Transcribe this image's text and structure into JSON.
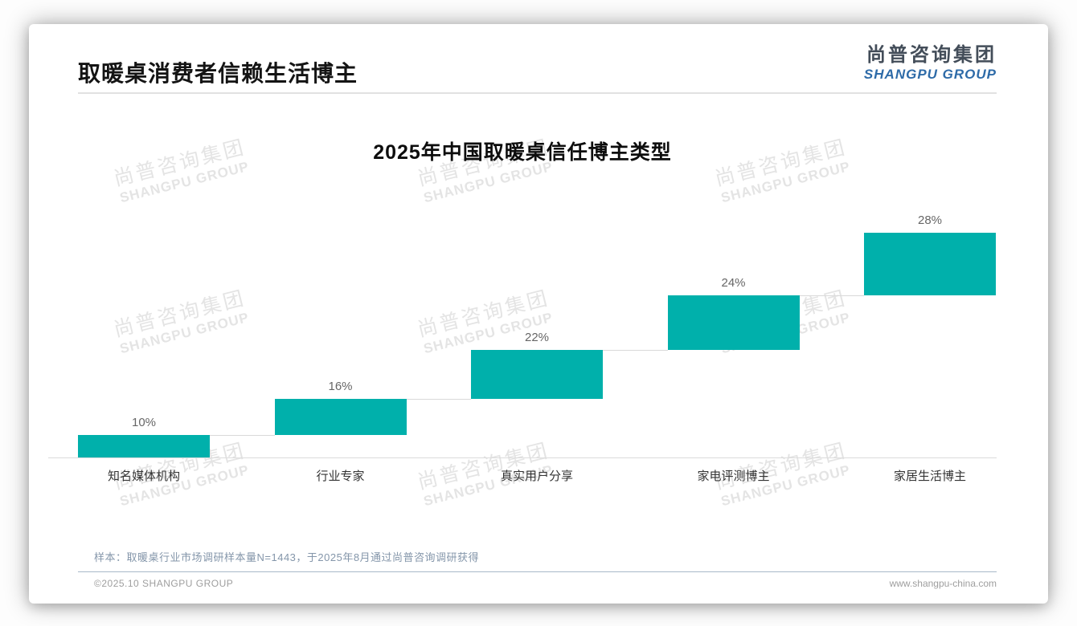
{
  "page": {
    "header": {
      "title": "取暖桌消费者信赖生活博主"
    },
    "logo": {
      "cn": "尚普咨询集团",
      "en": "SHANGPU GROUP"
    },
    "watermark": {
      "cn": "尚普咨询集团",
      "en": "SHANGPU GROUP"
    },
    "footer": {
      "sample_note": "样本：取暖桌行业市场调研样本量N=1443，于2025年8月通过尚普咨询调研获得",
      "copyright": "©2025.10 SHANGPU GROUP",
      "website": "www.shangpu-china.com"
    }
  },
  "chart_data": {
    "type": "bar",
    "subtype": "waterfall-steps",
    "title": "2025年中国取暖桌信任博主类型",
    "categories": [
      "知名媒体机构",
      "行业专家",
      "真实用户分享",
      "家电评测博主",
      "家居生活博主"
    ],
    "values": [
      10,
      16,
      22,
      24,
      28
    ],
    "value_labels": [
      "10%",
      "16%",
      "22%",
      "24%",
      "28%"
    ],
    "cumulative": [
      10,
      26,
      48,
      72,
      100
    ],
    "unit": "%",
    "bar_color": "#00b0ab",
    "ylim": [
      0,
      100
    ],
    "xlabel": "",
    "ylabel": "",
    "grid": false,
    "legend": false
  }
}
